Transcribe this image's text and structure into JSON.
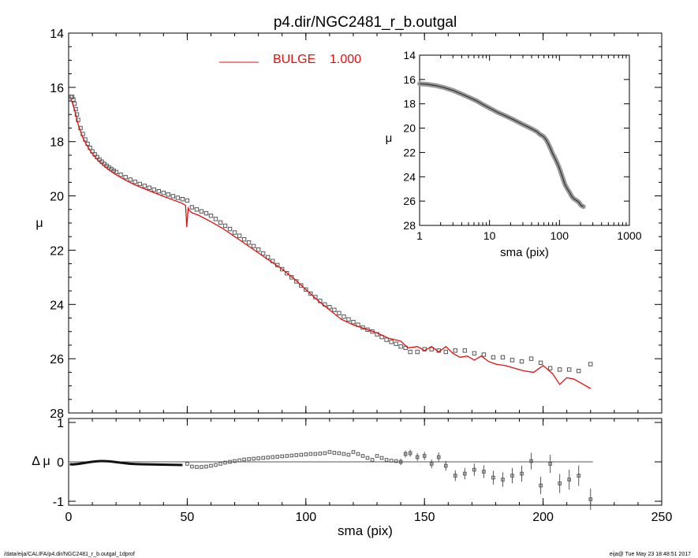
{
  "chart_data": [
    {
      "panel": "main",
      "type": "scatter",
      "title": "p4.dir/NGC2481_r_b.outgal",
      "xlabel": "sma (pix)",
      "ylabel": "μ",
      "xlim": [
        0,
        250
      ],
      "ylim": [
        28,
        14
      ],
      "x_ticks": [
        0,
        50,
        100,
        150,
        200,
        250
      ],
      "y_ticks": [
        14,
        16,
        18,
        20,
        22,
        24,
        26,
        28
      ],
      "legend": {
        "label": "BULGE",
        "value": "1.000",
        "color": "#e01010",
        "placement": "top-center"
      },
      "series": [
        {
          "type": "scatter",
          "marker": "square",
          "color": "#555555",
          "x": [
            1,
            1.5,
            2,
            2.5,
            3,
            3.5,
            4,
            5,
            6,
            7,
            8,
            9,
            10,
            11,
            12,
            13,
            14,
            15,
            16,
            17,
            18,
            19,
            20,
            22,
            24,
            26,
            28,
            30,
            32,
            34,
            36,
            38,
            40,
            42,
            44,
            46,
            48,
            50,
            52,
            54,
            56,
            58,
            60,
            62,
            64,
            66,
            68,
            70,
            72,
            74,
            76,
            78,
            80,
            82,
            84,
            86,
            88,
            90,
            92,
            94,
            96,
            98,
            100,
            102,
            104,
            106,
            108,
            110,
            112,
            114,
            116,
            118,
            120,
            122,
            124,
            126,
            128,
            130,
            132,
            134,
            136,
            138,
            140,
            142,
            144,
            147,
            150,
            153,
            156,
            159,
            163,
            167,
            171,
            175,
            179,
            183,
            187,
            191,
            195,
            199,
            203,
            207,
            211,
            215,
            220
          ],
          "y": [
            16.35,
            16.35,
            16.45,
            16.6,
            16.8,
            17.0,
            17.2,
            17.5,
            17.72,
            17.92,
            18.08,
            18.23,
            18.36,
            18.47,
            18.57,
            18.66,
            18.74,
            18.82,
            18.89,
            18.95,
            19.01,
            19.07,
            19.12,
            19.22,
            19.31,
            19.4,
            19.48,
            19.56,
            19.63,
            19.7,
            19.77,
            19.83,
            19.89,
            19.95,
            20.01,
            20.07,
            20.12,
            20.17,
            20.42,
            20.5,
            20.57,
            20.64,
            20.73,
            20.85,
            20.98,
            21.1,
            21.22,
            21.35,
            21.47,
            21.6,
            21.72,
            21.85,
            21.98,
            22.12,
            22.26,
            22.4,
            22.55,
            22.7,
            22.85,
            23.0,
            23.15,
            23.3,
            23.45,
            23.6,
            23.73,
            23.87,
            24.0,
            24.1,
            24.2,
            24.32,
            24.45,
            24.55,
            24.65,
            24.75,
            24.85,
            24.93,
            25.0,
            25.1,
            25.2,
            25.3,
            25.38,
            25.45,
            25.55,
            25.6,
            25.75,
            25.75,
            25.65,
            25.65,
            25.7,
            25.75,
            25.7,
            25.7,
            25.8,
            25.85,
            25.95,
            25.95,
            26.05,
            26.1,
            26.0,
            26.15,
            26.35,
            26.4,
            26.4,
            26.45,
            26.2
          ]
        },
        {
          "type": "line",
          "name": "BULGE",
          "color": "#e01010",
          "x": [
            1,
            1.5,
            2,
            2.5,
            3,
            3.5,
            4,
            5,
            6,
            7,
            8,
            9,
            10,
            11,
            12,
            13,
            14,
            15,
            16,
            17,
            18,
            19,
            20,
            22,
            24,
            26,
            28,
            30,
            32,
            34,
            36,
            38,
            40,
            42,
            44,
            46,
            48,
            49.3,
            49.8,
            50.4,
            51,
            52,
            55,
            60,
            65,
            70,
            75,
            80,
            85,
            90,
            95,
            100,
            105,
            110,
            115,
            120,
            125,
            130,
            135,
            140,
            143,
            147,
            150,
            153,
            156,
            159,
            162,
            165,
            168,
            171,
            174,
            177,
            180,
            184,
            188,
            192,
            196,
            200,
            204,
            207,
            210,
            213,
            216,
            220
          ],
          "y": [
            16.45,
            16.55,
            16.68,
            16.83,
            17.0,
            17.18,
            17.35,
            17.62,
            17.85,
            18.03,
            18.18,
            18.32,
            18.44,
            18.55,
            18.65,
            18.74,
            18.82,
            18.9,
            18.97,
            19.04,
            19.1,
            19.16,
            19.22,
            19.32,
            19.42,
            19.51,
            19.59,
            19.67,
            19.74,
            19.81,
            19.88,
            19.95,
            20.02,
            20.08,
            20.15,
            20.21,
            20.28,
            20.35,
            21.15,
            20.45,
            20.55,
            20.62,
            20.72,
            20.95,
            21.2,
            21.5,
            21.8,
            22.1,
            22.4,
            22.7,
            23.05,
            23.45,
            23.85,
            24.2,
            24.55,
            24.75,
            24.9,
            25.05,
            25.25,
            25.35,
            25.6,
            25.55,
            25.7,
            25.55,
            25.75,
            25.55,
            25.8,
            25.95,
            25.9,
            26.05,
            25.9,
            26.1,
            26.2,
            26.25,
            26.35,
            26.45,
            26.5,
            26.25,
            26.55,
            26.95,
            26.7,
            26.75,
            26.9,
            27.1
          ]
        }
      ]
    },
    {
      "panel": "inset",
      "type": "scatter",
      "xlabel": "sma (pix)",
      "ylabel": "μ",
      "xscale": "log",
      "xlim": [
        1,
        1000
      ],
      "ylim": [
        28,
        14
      ],
      "x_ticks": [
        1,
        10,
        100,
        1000
      ],
      "y_ticks": [
        14,
        16,
        18,
        20,
        22,
        24,
        26,
        28
      ],
      "series": [
        {
          "type": "line",
          "color": "#666666",
          "x": [
            1,
            1.3,
            1.7,
            2.2,
            3,
            4,
            5,
            6.5,
            8,
            10,
            13,
            17,
            22,
            30,
            40,
            48,
            52,
            56,
            60,
            65,
            70,
            75,
            80,
            85,
            90,
            95,
            100,
            110,
            120,
            130,
            140,
            150,
            160,
            170,
            180,
            190,
            200,
            210,
            220
          ],
          "y": [
            16.35,
            16.4,
            16.5,
            16.65,
            16.9,
            17.2,
            17.45,
            17.75,
            18.05,
            18.35,
            18.7,
            19.0,
            19.3,
            19.7,
            20.05,
            20.3,
            20.5,
            20.6,
            20.73,
            20.98,
            21.35,
            21.72,
            22.1,
            22.4,
            22.7,
            23.0,
            23.3,
            24.0,
            24.65,
            25.0,
            25.3,
            25.6,
            25.8,
            25.9,
            26.0,
            26.1,
            26.3,
            26.4,
            26.45
          ]
        }
      ]
    },
    {
      "panel": "residual",
      "type": "scatter",
      "xlabel": "sma (pix)",
      "ylabel": "Δ μ",
      "xlim": [
        0,
        250
      ],
      "ylim": [
        -1.1,
        1.1
      ],
      "x_ticks": [
        0,
        50,
        100,
        150,
        200,
        250
      ],
      "y_ticks": [
        1,
        0,
        -1
      ],
      "y_tick_labels": [
        "1",
        "0",
        "-1"
      ],
      "zero_line_to": 221,
      "series": [
        {
          "type": "scatter",
          "marker": "square",
          "color": "#555555",
          "x": [
            50,
            52,
            54,
            56,
            58,
            60,
            62,
            64,
            66,
            68,
            70,
            72,
            74,
            76,
            78,
            80,
            82,
            84,
            86,
            88,
            90,
            92,
            94,
            96,
            98,
            100,
            102,
            104,
            106,
            108,
            110,
            112,
            114,
            116,
            118,
            120,
            122,
            124,
            126,
            128,
            130,
            132,
            134,
            136,
            138,
            140,
            142,
            144,
            147,
            150,
            153,
            156,
            159,
            163,
            167,
            171,
            175,
            179,
            183,
            187,
            191,
            195,
            199,
            203,
            207,
            211,
            215,
            220
          ],
          "y": [
            -0.05,
            -0.12,
            -0.13,
            -0.13,
            -0.12,
            -0.1,
            -0.08,
            -0.05,
            -0.02,
            0.0,
            0.02,
            0.04,
            0.06,
            0.07,
            0.08,
            0.09,
            0.1,
            0.11,
            0.12,
            0.13,
            0.14,
            0.15,
            0.16,
            0.17,
            0.18,
            0.19,
            0.2,
            0.2,
            0.21,
            0.22,
            0.25,
            0.23,
            0.22,
            0.2,
            0.18,
            0.25,
            0.2,
            0.15,
            0.1,
            0.05,
            0.15,
            0.1,
            0.05,
            0.03,
            0.02,
            0.0,
            0.2,
            0.22,
            0.12,
            0.15,
            -0.05,
            0.12,
            -0.1,
            -0.35,
            -0.3,
            -0.2,
            -0.25,
            -0.4,
            -0.45,
            -0.35,
            -0.3,
            0.02,
            -0.6,
            -0.05,
            -0.55,
            -0.45,
            -0.35,
            -0.95
          ]
        }
      ]
    }
  ],
  "footer": {
    "left": "/data/eija/CALIFA/p4.dir/NGC2481_r_b.outgal_1dprof",
    "right": "eija@  Tue May 23 18:48:51 2017"
  }
}
